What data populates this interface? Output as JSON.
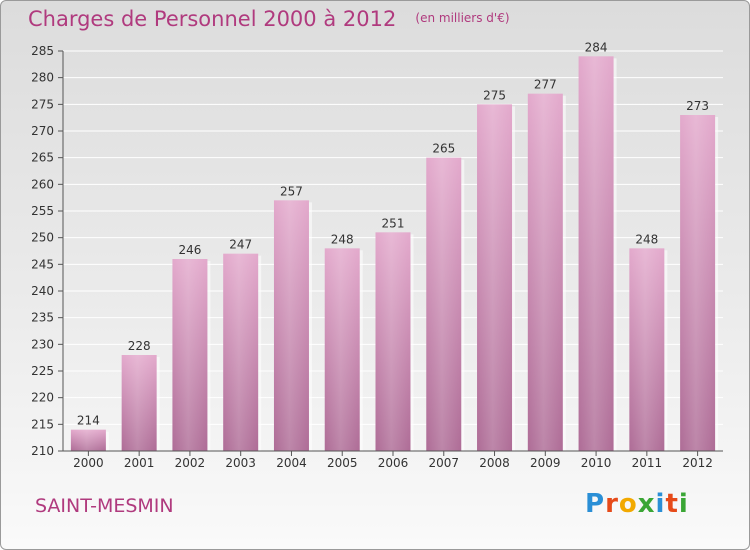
{
  "chart_data": {
    "type": "bar",
    "title": "Charges de Personnel 2000 à 2012",
    "subtitle": "(en milliers d'€)",
    "categories": [
      "2000",
      "2001",
      "2002",
      "2003",
      "2004",
      "2005",
      "2006",
      "2007",
      "2008",
      "2009",
      "2010",
      "2011",
      "2012"
    ],
    "values": [
      214,
      228,
      246,
      247,
      257,
      248,
      251,
      265,
      275,
      277,
      284,
      248,
      273
    ],
    "ylim": [
      210,
      285
    ],
    "yticks": [
      210,
      215,
      220,
      225,
      230,
      235,
      240,
      245,
      250,
      255,
      260,
      265,
      270,
      275,
      280,
      285
    ],
    "grid": true,
    "bar_color": "#c97aa8"
  },
  "commune": "SAINT-MESMIN",
  "logo": {
    "letters": [
      "P",
      "r",
      "o",
      "x",
      "i",
      "t",
      "i"
    ]
  }
}
